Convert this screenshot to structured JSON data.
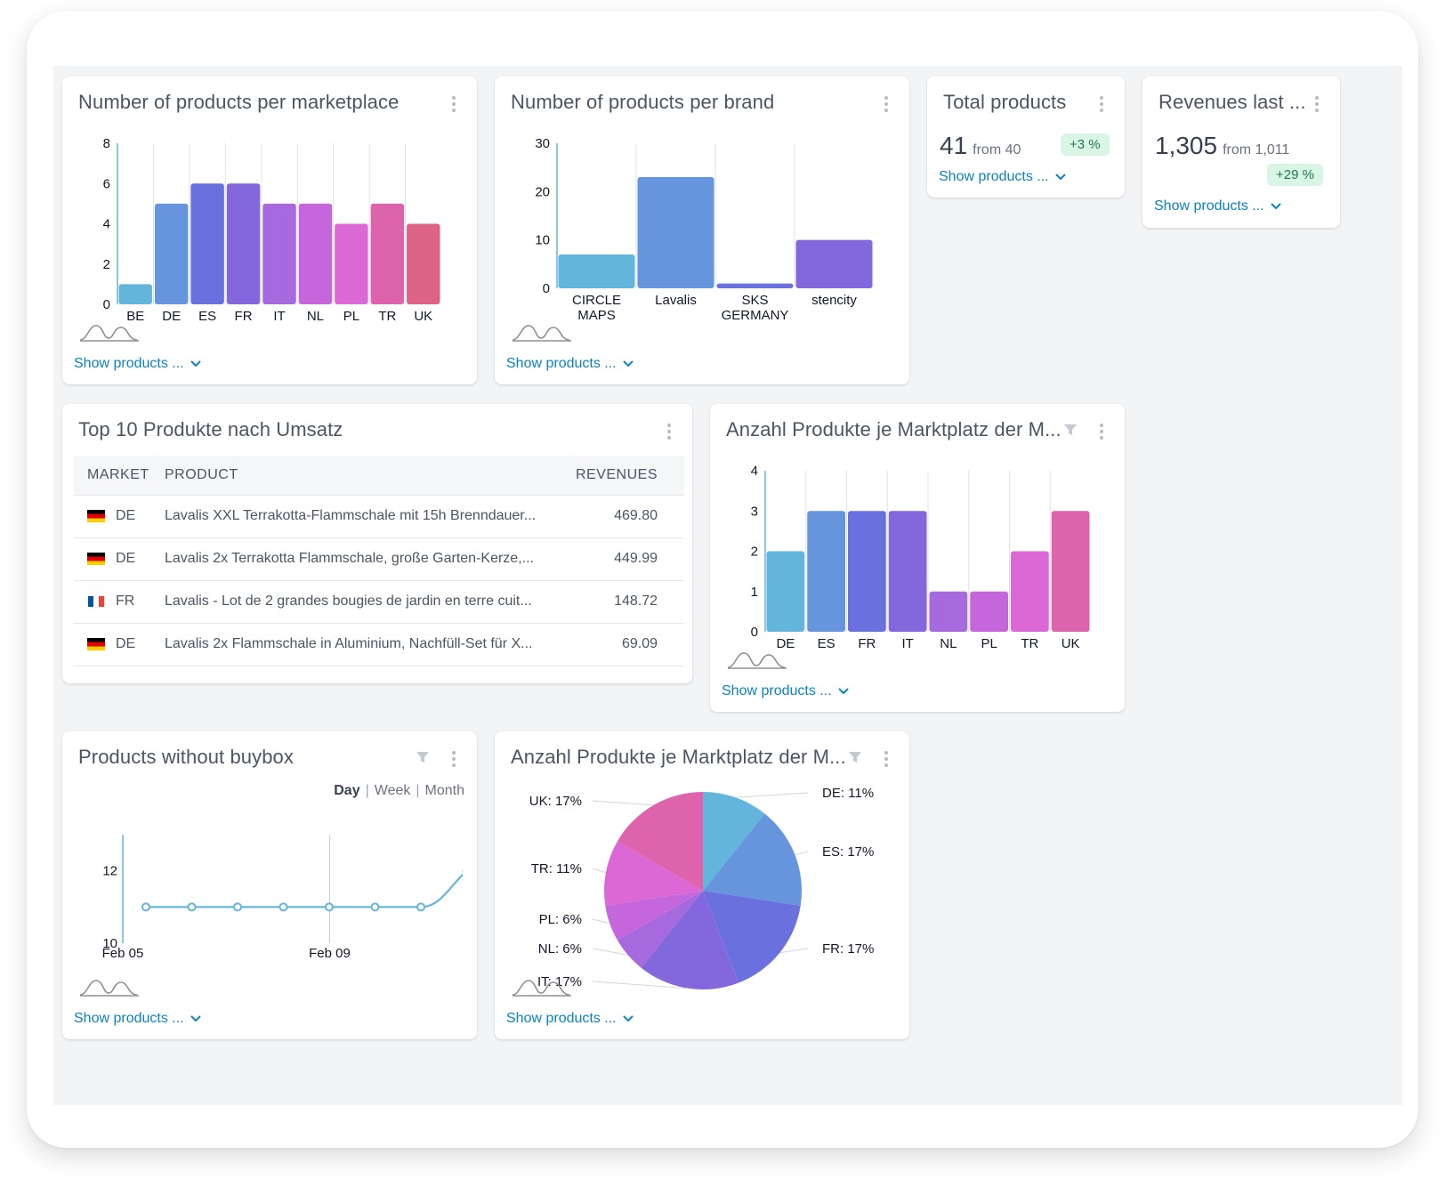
{
  "common": {
    "show_products": "Show products ..."
  },
  "cards": {
    "marketplace": {
      "title": "Number of products per marketplace"
    },
    "brand": {
      "title": "Number of products per brand"
    },
    "total": {
      "title": "Total products",
      "value": "41",
      "from": "from 40",
      "badge": "+3 %"
    },
    "revenues": {
      "title": "Revenues last ...",
      "value": "1,305",
      "from": "from 1,011",
      "badge": "+29 %"
    },
    "top10": {
      "title": "Top 10 Produkte nach Umsatz",
      "columns": {
        "market": "MARKET",
        "product": "PRODUCT",
        "revenues": "REVENUES"
      },
      "rows": [
        {
          "flag": "de",
          "market": "DE",
          "product": "Lavalis XXL Terrakotta-Flammschale mit 15h Brenndauer...",
          "revenue": "469.80"
        },
        {
          "flag": "de",
          "market": "DE",
          "product": "Lavalis 2x Terrakotta Flammschale, große Garten-Kerze,...",
          "revenue": "449.99"
        },
        {
          "flag": "fr",
          "market": "FR",
          "product": "Lavalis - Lot de 2 grandes bougies de jardin en terre cuit...",
          "revenue": "148.72"
        },
        {
          "flag": "de",
          "market": "DE",
          "product": "Lavalis 2x Flammschale in Aluminium, Nachfüll-Set für X...",
          "revenue": "69.09"
        }
      ]
    },
    "anzahl_bar": {
      "title": "Anzahl Produkte je Marktplatz der M..."
    },
    "buybox": {
      "title": "Products without buybox",
      "periods": {
        "day": "Day",
        "week": "Week",
        "month": "Month"
      }
    },
    "anzahl_pie": {
      "title": "Anzahl Produkte je Marktplatz der M..."
    }
  },
  "chart_data": [
    {
      "id": "marketplace",
      "type": "bar",
      "categories": [
        "BE",
        "DE",
        "ES",
        "FR",
        "IT",
        "NL",
        "PL",
        "TR",
        "UK"
      ],
      "values": [
        1,
        5,
        6,
        6,
        5,
        5,
        4,
        5,
        4
      ],
      "ylim": [
        0,
        8
      ],
      "yticks": [
        0,
        2,
        4,
        6,
        8
      ],
      "colors": [
        "#64b5dc",
        "#6795dd",
        "#6a70dd",
        "#8367dd",
        "#a66ade",
        "#c566dd",
        "#db68d4",
        "#dd63ad",
        "#dd6487"
      ]
    },
    {
      "id": "brand",
      "type": "bar",
      "categories": [
        [
          "CIRCLE",
          "MAPS"
        ],
        [
          "Lavalis"
        ],
        [
          "SKS",
          "GERMANY"
        ],
        [
          "stencity"
        ]
      ],
      "values": [
        7,
        23,
        1,
        10
      ],
      "ylim": [
        0,
        30
      ],
      "yticks": [
        0,
        10,
        20,
        30
      ],
      "colors": [
        "#64b5dc",
        "#6795dd",
        "#6a70dd",
        "#8367dd"
      ]
    },
    {
      "id": "anzahl_bar",
      "type": "bar",
      "categories": [
        "DE",
        "ES",
        "FR",
        "IT",
        "NL",
        "PL",
        "TR",
        "UK"
      ],
      "values": [
        2,
        3,
        3,
        3,
        1,
        1,
        2,
        3
      ],
      "ylim": [
        0,
        4
      ],
      "yticks": [
        0,
        1,
        2,
        3,
        4
      ],
      "colors": [
        "#64b5dc",
        "#6795dd",
        "#6a70dd",
        "#8367dd",
        "#a66ade",
        "#c566dd",
        "#db68d4",
        "#dd63ad"
      ]
    },
    {
      "id": "buybox",
      "type": "line",
      "x": [
        "Feb 04",
        "Feb 05",
        "Feb 06",
        "Feb 07",
        "Feb 08",
        "Feb 09",
        "Feb 10",
        "Feb 11"
      ],
      "values": [
        11,
        11,
        11,
        11,
        11,
        11,
        11,
        12
      ],
      "xticks": [
        "Feb 05",
        "Feb 09"
      ],
      "yticks": [
        10,
        12
      ],
      "ylim": [
        10,
        13
      ],
      "color": "#64b5dc"
    },
    {
      "id": "anzahl_pie",
      "type": "pie",
      "labels": [
        "DE",
        "ES",
        "FR",
        "IT",
        "NL",
        "PL",
        "TR",
        "UK"
      ],
      "values": [
        11,
        17,
        17,
        17,
        6,
        6,
        11,
        17
      ],
      "value_labels": [
        "DE: 11%",
        "ES: 17%",
        "FR: 17%",
        "IT: 17%",
        "NL: 6%",
        "PL: 6%",
        "TR: 11%",
        "UK: 17%"
      ],
      "colors": [
        "#64b5dc",
        "#6795dd",
        "#6a70dd",
        "#8367dd",
        "#a66ade",
        "#c566dd",
        "#db68d4",
        "#dd63ad"
      ]
    }
  ]
}
